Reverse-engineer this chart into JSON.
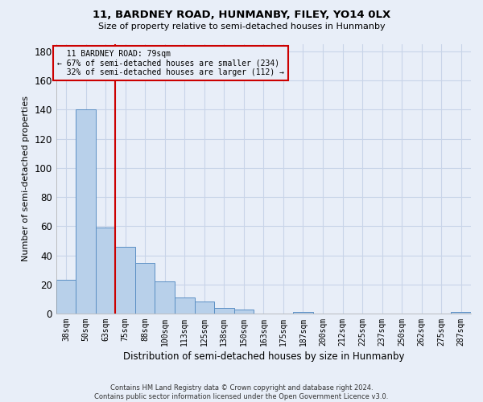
{
  "title": "11, BARDNEY ROAD, HUNMANBY, FILEY, YO14 0LX",
  "subtitle": "Size of property relative to semi-detached houses in Hunmanby",
  "xlabel": "Distribution of semi-detached houses by size in Hunmanby",
  "ylabel": "Number of semi-detached properties",
  "categories": [
    "38sqm",
    "50sqm",
    "63sqm",
    "75sqm",
    "88sqm",
    "100sqm",
    "113sqm",
    "125sqm",
    "138sqm",
    "150sqm",
    "163sqm",
    "175sqm",
    "187sqm",
    "200sqm",
    "212sqm",
    "225sqm",
    "237sqm",
    "250sqm",
    "262sqm",
    "275sqm",
    "287sqm"
  ],
  "values": [
    23,
    140,
    59,
    46,
    35,
    22,
    11,
    8,
    4,
    3,
    0,
    0,
    1,
    0,
    0,
    0,
    0,
    0,
    0,
    0,
    1
  ],
  "bar_color": "#b8d0ea",
  "bar_edge_color": "#5b8fc4",
  "property_line_x": 2.5,
  "property_label": "11 BARDNEY ROAD: 79sqm",
  "smaller_pct": "67%",
  "smaller_count": 234,
  "larger_pct": "32%",
  "larger_count": 112,
  "annotation_line_color": "#cc0000",
  "background_color": "#e8eef8",
  "grid_color": "#c8d4e8",
  "ylim": [
    0,
    185
  ],
  "yticks": [
    0,
    20,
    40,
    60,
    80,
    100,
    120,
    140,
    160,
    180
  ],
  "footer_line1": "Contains HM Land Registry data © Crown copyright and database right 2024.",
  "footer_line2": "Contains public sector information licensed under the Open Government Licence v3.0."
}
